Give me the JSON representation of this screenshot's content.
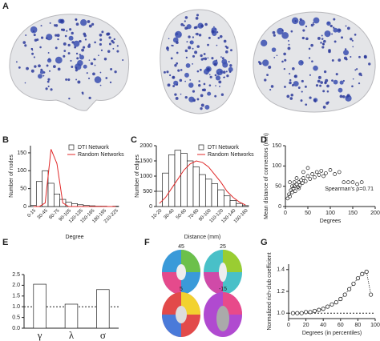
{
  "panel_a": {
    "label": "A"
  },
  "panel_f": {
    "label": "F",
    "slice_labels": [
      "45",
      "25",
      "5",
      "-15"
    ]
  },
  "chart_data": [
    {
      "type": "bar",
      "panel": "B",
      "xlabel": "Degree",
      "ylabel": "Number of nodes",
      "categories": [
        "0-15",
        null,
        "30-45",
        null,
        "60-75",
        null,
        "90-105",
        null,
        "120-135",
        null,
        "150-165",
        null,
        "180-195",
        null,
        "210-225"
      ],
      "series": [
        {
          "name": "DTI Network",
          "color": "#ffffff",
          "mark": "bar",
          "values": [
            3,
            70,
            100,
            65,
            35,
            20,
            12,
            8,
            5,
            3,
            2,
            1,
            1,
            0,
            1
          ]
        },
        {
          "name": "Random Networks",
          "color": "#e02828",
          "mark": "line",
          "values": [
            0,
            0,
            10,
            160,
            120,
            10,
            0,
            0,
            0,
            0,
            0,
            0,
            0,
            0,
            0
          ]
        }
      ],
      "ylim": [
        0,
        170
      ],
      "yticks": [
        0,
        50,
        100,
        150
      ],
      "legend": "upper right"
    },
    {
      "type": "bar",
      "panel": "C",
      "xlabel": "Distance (mm)",
      "ylabel": "Number of edges",
      "categories": [
        "10-20",
        null,
        "30-40",
        null,
        "50-60",
        null,
        "70-80",
        null,
        "90-100",
        null,
        "110-120",
        null,
        "130-140",
        null,
        "150-160"
      ],
      "series": [
        {
          "name": "DTI Network",
          "color": "#ffffff",
          "mark": "bar",
          "values": [
            500,
            1100,
            1700,
            1850,
            1750,
            1500,
            1300,
            1050,
            900,
            750,
            550,
            350,
            200,
            100,
            30
          ]
        },
        {
          "name": "Random Networks",
          "color": "#e02828",
          "mark": "line",
          "values": [
            100,
            300,
            600,
            900,
            1200,
            1400,
            1500,
            1450,
            1300,
            1050,
            800,
            500,
            300,
            150,
            50
          ]
        }
      ],
      "ylim": [
        0,
        2000
      ],
      "yticks": [
        0,
        500,
        1000,
        1500,
        2000
      ],
      "legend": "upper right"
    },
    {
      "type": "scatter",
      "panel": "D",
      "xlabel": "Degrees",
      "ylabel": "Mean distance of connectors (mm)",
      "annotation": "Spearman's ρ=0.71",
      "x": [
        5,
        8,
        10,
        12,
        15,
        18,
        20,
        22,
        25,
        28,
        30,
        32,
        35,
        38,
        40,
        45,
        50,
        55,
        60,
        65,
        70,
        75,
        80,
        85,
        90,
        100,
        110,
        120,
        130,
        140,
        150,
        160,
        170,
        10,
        15,
        20,
        25,
        30,
        40,
        50
      ],
      "y": [
        20,
        30,
        25,
        40,
        35,
        45,
        50,
        38,
        55,
        48,
        60,
        52,
        65,
        58,
        70,
        62,
        75,
        68,
        80,
        72,
        85,
        78,
        88,
        75,
        82,
        90,
        80,
        85,
        60,
        60,
        60,
        55,
        60,
        60,
        50,
        60,
        70,
        45,
        85,
        95
      ],
      "color": "#222222",
      "xlim": [
        0,
        200
      ],
      "xticks": [
        0,
        50,
        100,
        150,
        200
      ],
      "ylim": [
        0,
        150
      ],
      "yticks": [
        0,
        50,
        100,
        150
      ]
    },
    {
      "type": "bar",
      "panel": "E",
      "categories": [
        "γ",
        "λ",
        "σ"
      ],
      "values": [
        2.05,
        1.12,
        1.8
      ],
      "color": "#ffffff",
      "ylim": [
        0,
        2.5
      ],
      "yticks": [
        {
          "value": 0,
          "label": "0.0"
        },
        0.5,
        {
          "value": 1,
          "label": "1.0"
        },
        1.5,
        {
          "value": 2,
          "label": "2.0"
        },
        2.5
      ],
      "reference_line": 1
    },
    {
      "type": "line",
      "panel": "G",
      "xlabel": "Degrees (in percentiles)",
      "ylabel": "Normalized rich-club coefficient",
      "x": [
        5,
        10,
        15,
        20,
        25,
        30,
        35,
        40,
        45,
        50,
        55,
        60,
        65,
        70,
        75,
        80,
        85,
        90,
        95
      ],
      "values": [
        1.0,
        1.0,
        1.0,
        1.01,
        1.01,
        1.02,
        1.03,
        1.04,
        1.06,
        1.08,
        1.1,
        1.13,
        1.17,
        1.22,
        1.27,
        1.32,
        1.36,
        1.38,
        1.17
      ],
      "color": "#222222",
      "xlim": [
        0,
        100
      ],
      "xticks": [
        0,
        20,
        40,
        60,
        80,
        100
      ],
      "ylim": [
        0.95,
        1.45
      ],
      "yticks": [
        {
          "value": 1,
          "label": "1.0"
        },
        {
          "value": 1.2,
          "label": "1.2"
        },
        {
          "value": 1.4,
          "label": "1.4"
        }
      ],
      "reference_line": 1
    }
  ]
}
